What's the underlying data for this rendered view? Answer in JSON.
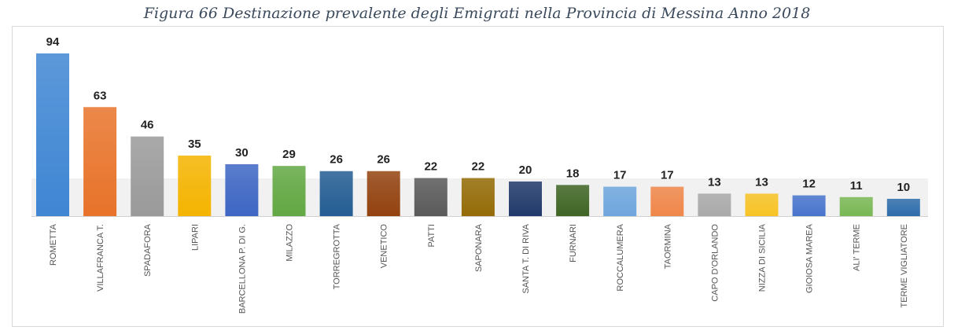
{
  "caption": "Figura 66 Destinazione prevalente degli Emigrati nella Provincia di Messina Anno 2018",
  "chart_data": {
    "type": "bar",
    "title": "",
    "xlabel": "",
    "ylabel": "",
    "ylim": [
      0,
      100
    ],
    "grid": false,
    "categories": [
      "ROMETTA",
      "VILLAFRANCA T.",
      "SPADAFORA",
      "LIPARI",
      "BARCELLONA P. DI G.",
      "MILAZZO",
      "TORREGROTTA",
      "VENETICO",
      "PATTI",
      "SAPONARA",
      "SANTA T. DI RIVA",
      "FURNARI",
      "ROCCALUMERA",
      "TAORMINA",
      "CAPO D'ORLANDO",
      "NIZZA DI SICILIA",
      "GIOIOSA MAREA",
      "ALI' TERME",
      "TERME VIGLIATORE"
    ],
    "values": [
      94,
      63,
      46,
      35,
      30,
      29,
      26,
      26,
      22,
      22,
      20,
      18,
      17,
      17,
      13,
      13,
      12,
      11,
      10
    ],
    "colors": [
      "#3f86d3",
      "#e8732a",
      "#9a9a9a",
      "#f5b400",
      "#3d66c4",
      "#62a843",
      "#235d93",
      "#93420f",
      "#5a5a5a",
      "#946b06",
      "#213a6b",
      "#3f6524",
      "#6ea6de",
      "#f0874a",
      "#a9a9a9",
      "#f7c325",
      "#4874cd",
      "#79b854",
      "#2e6dab"
    ]
  }
}
